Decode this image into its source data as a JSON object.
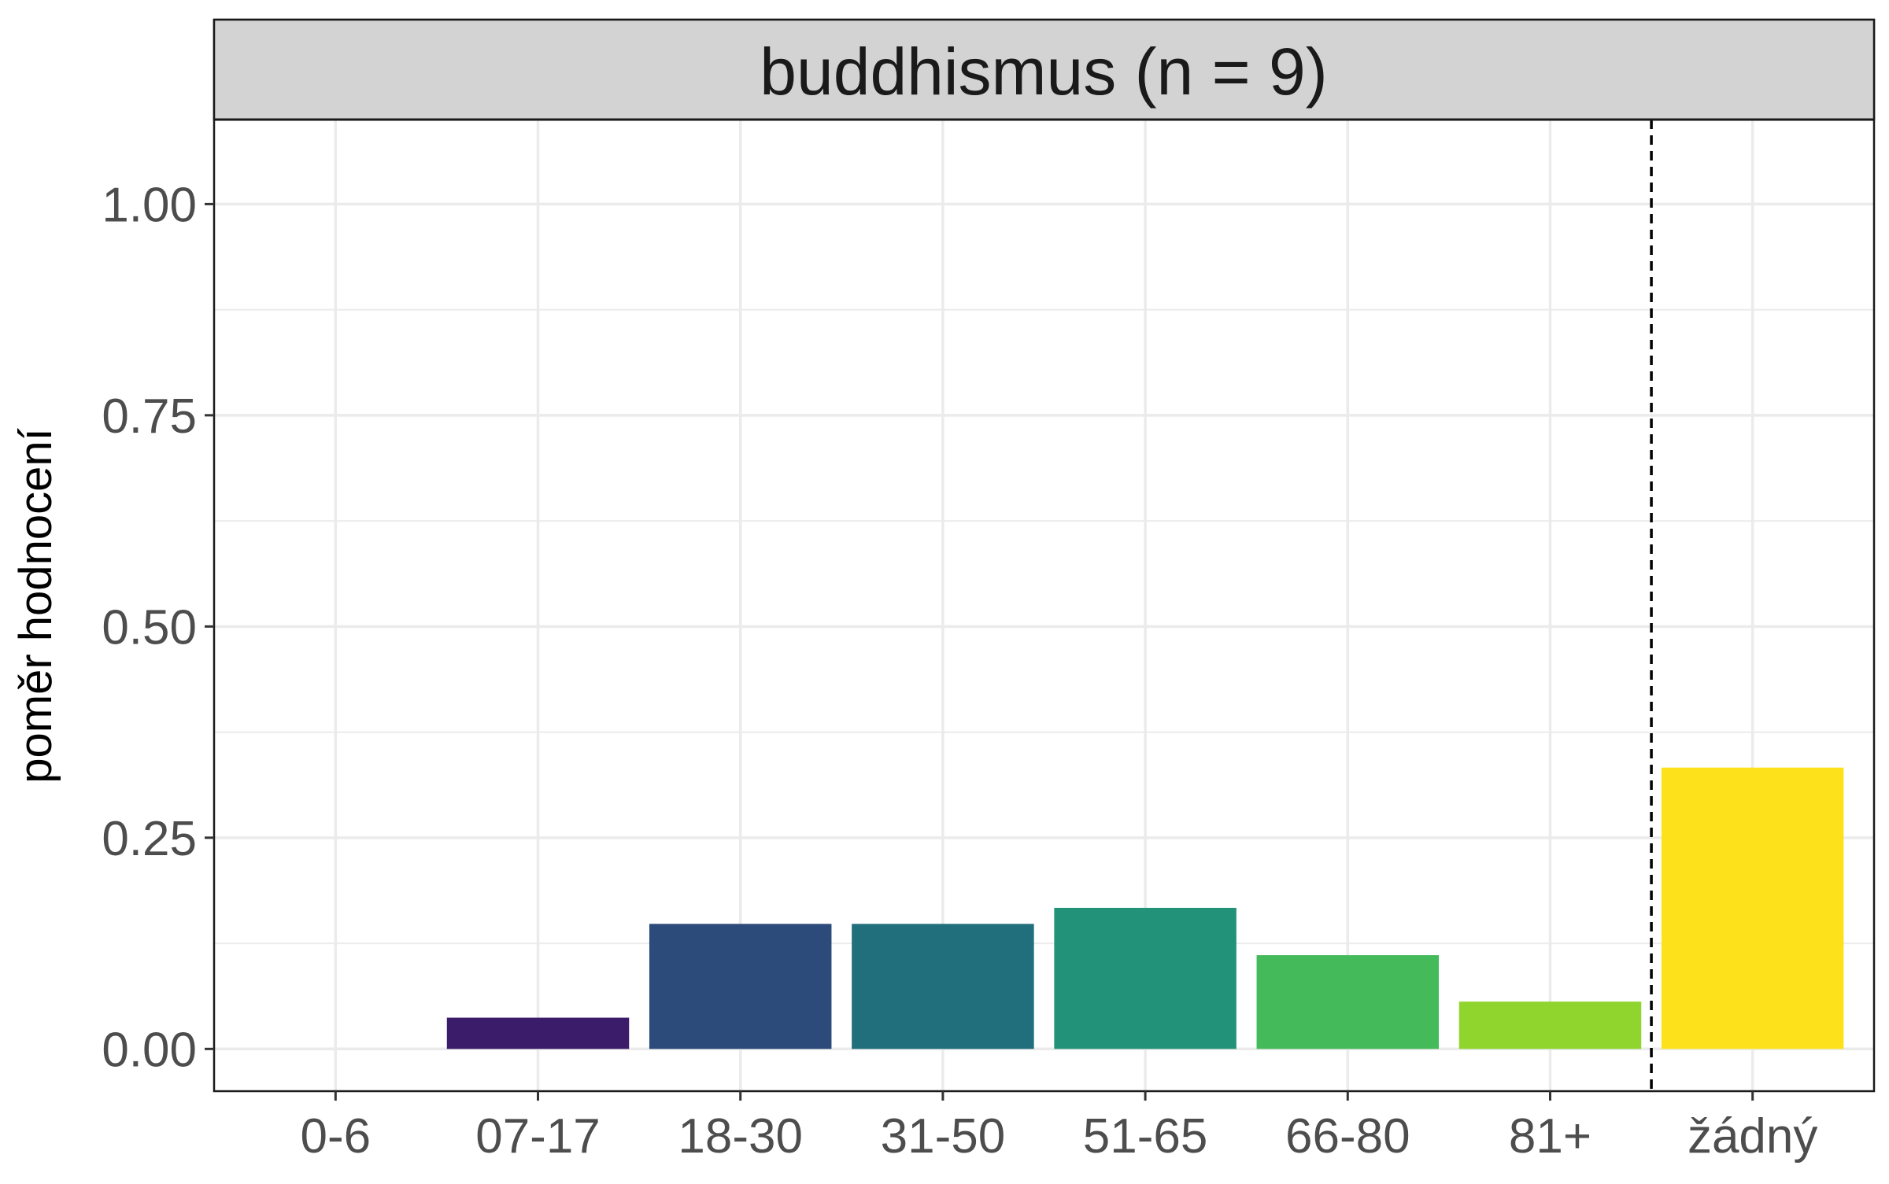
{
  "chart_data": {
    "type": "bar",
    "facet_title": "buddhismus (n = 9)",
    "categories": [
      "0-6",
      "07-17",
      "18-30",
      "31-50",
      "51-65",
      "66-80",
      "81+",
      "žádný"
    ],
    "values": [
      0,
      0.037,
      0.148,
      0.148,
      0.167,
      0.111,
      0.056,
      0.333
    ],
    "colors": [
      "#440154",
      "#3B1C6A",
      "#2C4A7A",
      "#216E7C",
      "#229378",
      "#44BA5A",
      "#8FD52E",
      "#FDE21B"
    ],
    "ylabel": "poměr hodnocení",
    "xlabel": "",
    "ylim": [
      -0.05,
      1.1
    ],
    "y_ticks": [
      0,
      0.25,
      0.5,
      0.75,
      1.0
    ],
    "y_tick_labels": [
      "0.00",
      "0.25",
      "0.50",
      "0.75",
      "1.00"
    ],
    "reference_line": {
      "between_categories": [
        "81+",
        "žádný"
      ],
      "style": "dashed"
    },
    "grid": true,
    "legend": "none"
  }
}
